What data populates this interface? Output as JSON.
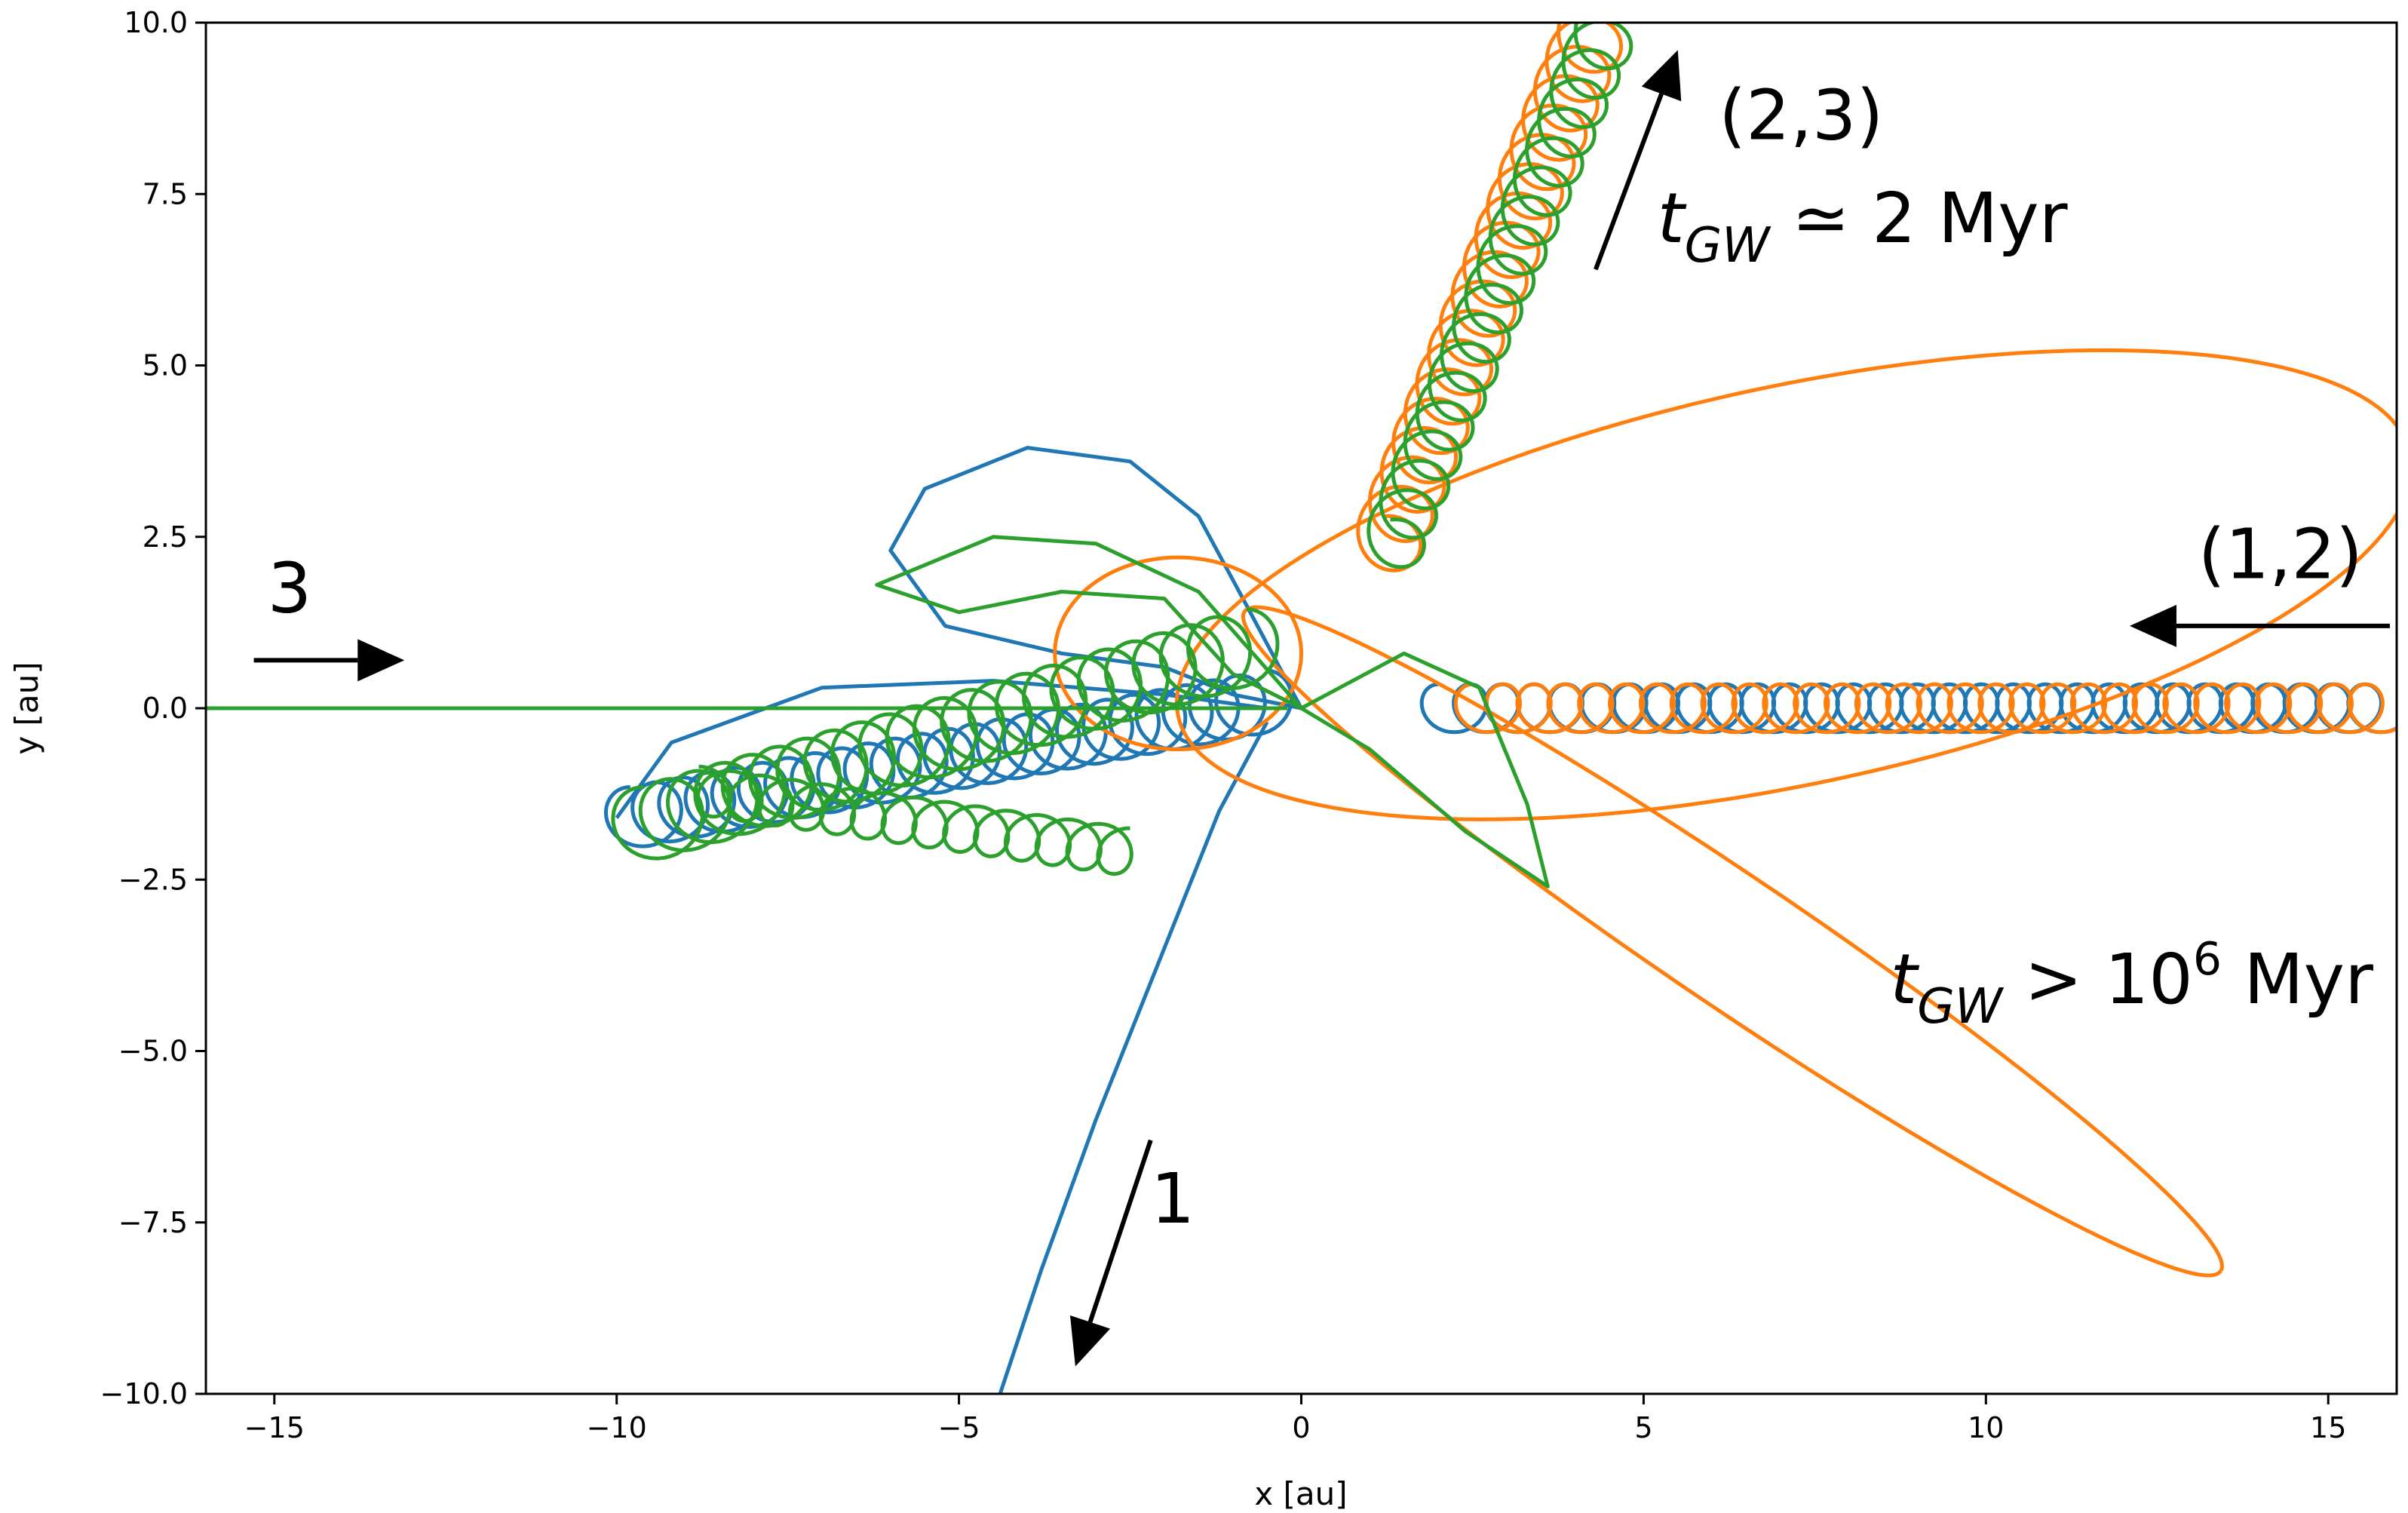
{
  "chart_data": {
    "type": "line",
    "title": "",
    "xlabel": "x [au]",
    "ylabel": "y [au]",
    "xlim": [
      -16,
      16
    ],
    "ylim": [
      -10,
      10
    ],
    "grid": false,
    "xticks": [
      -15,
      -10,
      -5,
      0,
      5,
      10,
      15
    ],
    "xtick_labels": [
      "−15",
      "−10",
      "−5",
      "0",
      "5",
      "10",
      "15"
    ],
    "yticks": [
      -10,
      -7.5,
      -5,
      -2.5,
      0,
      2.5,
      5,
      7.5,
      10
    ],
    "ytick_labels": [
      "−10.0",
      "−7.5",
      "−5.0",
      "−2.5",
      "0.0",
      "2.5",
      "5.0",
      "7.5",
      "10.0"
    ],
    "colors": {
      "blue": "#1f77b4",
      "orange": "#ff7f0e",
      "green": "#2ca02c"
    },
    "series": [
      {
        "color": "#1f77b4",
        "segments": [
          {
            "kind": "binary_loops",
            "from": [
              16,
              0
            ],
            "to": [
              2,
              0
            ],
            "loops": 30,
            "radius": 0.35
          },
          {
            "kind": "path",
            "points": [
              [
                0,
                0
              ],
              [
                -0.8,
                1.5
              ],
              [
                -1.5,
                2.8
              ],
              [
                -2.5,
                3.6
              ],
              [
                -4,
                3.8
              ],
              [
                -5.5,
                3.2
              ],
              [
                -6,
                2.3
              ],
              [
                -5.2,
                1.2
              ],
              [
                -3.5,
                0.8
              ],
              [
                -2,
                0.6
              ],
              [
                -1,
                0.2
              ],
              [
                0,
                0
              ]
            ]
          },
          {
            "kind": "binary_loops",
            "from": [
              -0.5,
              0.1
            ],
            "to": [
              -9.8,
              -1.6
            ],
            "loops": 24,
            "radius": 0.45
          },
          {
            "kind": "path",
            "points": [
              [
                -10,
                -1.6
              ],
              [
                -9.2,
                -0.5
              ],
              [
                -7,
                0.3
              ],
              [
                -4.5,
                0.4
              ],
              [
                -2,
                0.2
              ],
              [
                -0.5,
                0
              ]
            ]
          },
          {
            "kind": "path",
            "points": [
              [
                -0.5,
                -0.2
              ],
              [
                -1.2,
                -1.5
              ],
              [
                -2,
                -3.5
              ],
              [
                -3,
                -6
              ],
              [
                -3.8,
                -8.2
              ],
              [
                -4.4,
                -10
              ]
            ]
          }
        ]
      },
      {
        "color": "#ff7f0e",
        "segments": [
          {
            "kind": "binary_loops",
            "from": [
              16,
              0
            ],
            "to": [
              2.5,
              0
            ],
            "loops": 30,
            "radius": 0.35
          },
          {
            "kind": "ellipse",
            "center": [
              7.2,
              1.8
            ],
            "rx": 9.2,
            "ry": 2.9,
            "rotation_deg": 12
          },
          {
            "kind": "ellipse",
            "center": [
              6.3,
              -3.4
            ],
            "rx": 8.6,
            "ry": 0.95,
            "rotation_deg": -34
          },
          {
            "kind": "ellipse",
            "center": [
              -1.8,
              0.8
            ],
            "rx": 1.8,
            "ry": 1.4,
            "rotation_deg": 0
          },
          {
            "kind": "binary_loops",
            "from": [
              1.2,
              2.3
            ],
            "to": [
              4.3,
              10
            ],
            "loops": 18,
            "radius": 0.5
          }
        ]
      },
      {
        "color": "#2ca02c",
        "segments": [
          {
            "kind": "path",
            "points": [
              [
                -16,
                0
              ],
              [
                -0.2,
                0
              ]
            ]
          },
          {
            "kind": "binary_loops",
            "from": [
              -0.8,
              0.9
            ],
            "to": [
              -9.6,
              -1.7
            ],
            "loops": 22,
            "radius": 0.55
          },
          {
            "kind": "binary_loops",
            "from": [
              -8.8,
              -1.2
            ],
            "to": [
              -2.5,
              -2.1
            ],
            "loops": 14,
            "radius": 0.35
          },
          {
            "kind": "path",
            "points": [
              [
                0,
                0
              ],
              [
                -1.5,
                1.7
              ],
              [
                -3,
                2.4
              ],
              [
                -4.5,
                2.5
              ],
              [
                -6.2,
                1.8
              ],
              [
                -5,
                1.4
              ],
              [
                -3.5,
                1.7
              ],
              [
                -2,
                1.6
              ],
              [
                -1,
                0.5
              ],
              [
                0,
                0
              ]
            ]
          },
          {
            "kind": "path",
            "points": [
              [
                0,
                0
              ],
              [
                1.5,
                0.8
              ],
              [
                2.6,
                0.3
              ],
              [
                3.3,
                -1.4
              ],
              [
                3.6,
                -2.6
              ],
              [
                2.4,
                -1.8
              ],
              [
                1,
                -0.6
              ],
              [
                0,
                0
              ]
            ]
          },
          {
            "kind": "binary_loops",
            "from": [
              1.3,
              2.3
            ],
            "to": [
              4.5,
              10
            ],
            "loops": 18,
            "radius": 0.45
          }
        ]
      }
    ],
    "annotations": [
      {
        "text": "(2,3)",
        "x": 6.1,
        "y": 8.3
      },
      {
        "text_main": "t",
        "sub": "GW",
        "rest": " ≃ 2 Myr",
        "x": 5.2,
        "y": 6.8
      },
      {
        "text": "(1,2)",
        "x": 13.1,
        "y": 1.9
      },
      {
        "text_main": "t",
        "sub": "GW",
        "rest": " > 10",
        "sup": "6",
        "rest2": " Myr",
        "x": 8.6,
        "y": -4.3
      },
      {
        "text": "3",
        "x": -15.1,
        "y": 1.4
      },
      {
        "text": "1",
        "x": -2.2,
        "y": -7.5
      }
    ],
    "arrows": [
      {
        "from": [
          -15.3,
          0.7
        ],
        "to": [
          -13.1,
          0.7
        ],
        "label": "3"
      },
      {
        "from": [
          -2.2,
          -6.3
        ],
        "to": [
          -3.3,
          -9.6
        ],
        "label": "1"
      },
      {
        "from": [
          4.3,
          6.4
        ],
        "to": [
          5.5,
          9.6
        ],
        "label": "(2,3)"
      },
      {
        "from": [
          15.9,
          1.2
        ],
        "to": [
          12.1,
          1.2
        ],
        "label": "(1,2)"
      }
    ]
  }
}
